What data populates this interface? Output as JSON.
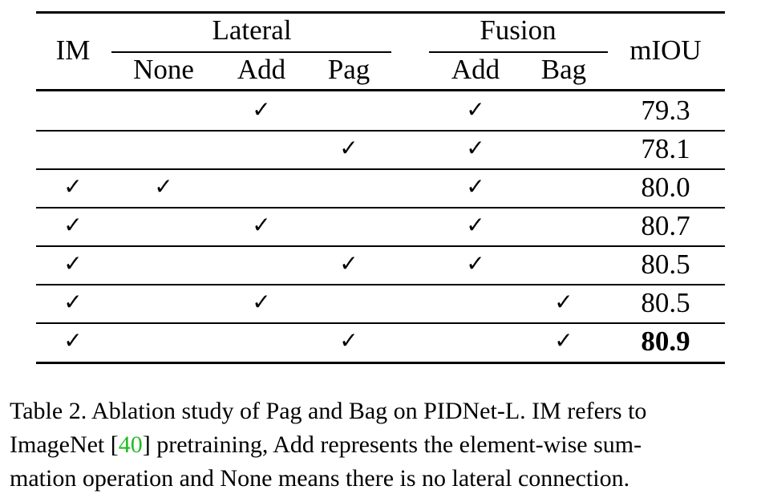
{
  "table": {
    "headers": {
      "im": "IM",
      "lateral": "Lateral",
      "fusion": "Fusion",
      "miou": "mIOU",
      "lateral_sub": [
        "None",
        "Add",
        "Pag"
      ],
      "fusion_sub": [
        "Add",
        "Bag"
      ]
    },
    "check_glyph": "✓",
    "rows": [
      {
        "im": false,
        "none": false,
        "add": true,
        "pag": false,
        "f_add": true,
        "f_bag": false,
        "miou": "79.3",
        "bold": false
      },
      {
        "im": false,
        "none": false,
        "add": false,
        "pag": true,
        "f_add": true,
        "f_bag": false,
        "miou": "78.1",
        "bold": false
      },
      {
        "im": true,
        "none": true,
        "add": false,
        "pag": false,
        "f_add": true,
        "f_bag": false,
        "miou": "80.0",
        "bold": false
      },
      {
        "im": true,
        "none": false,
        "add": true,
        "pag": false,
        "f_add": true,
        "f_bag": false,
        "miou": "80.7",
        "bold": false
      },
      {
        "im": true,
        "none": false,
        "add": false,
        "pag": true,
        "f_add": true,
        "f_bag": false,
        "miou": "80.5",
        "bold": false
      },
      {
        "im": true,
        "none": false,
        "add": true,
        "pag": false,
        "f_add": false,
        "f_bag": true,
        "miou": "80.5",
        "bold": false
      },
      {
        "im": true,
        "none": false,
        "add": false,
        "pag": true,
        "f_add": false,
        "f_bag": true,
        "miou": "80.9",
        "bold": true
      }
    ]
  },
  "caption": {
    "line1": "Table 2. Ablation study of Pag and Bag on PIDNet-L. IM refers to",
    "line2_before": "ImageNet [",
    "line2_cite": "40",
    "line2_after": "] pretraining, Add represents the element-wise sum-",
    "line3": "mation operation and None means there is no lateral connection."
  }
}
